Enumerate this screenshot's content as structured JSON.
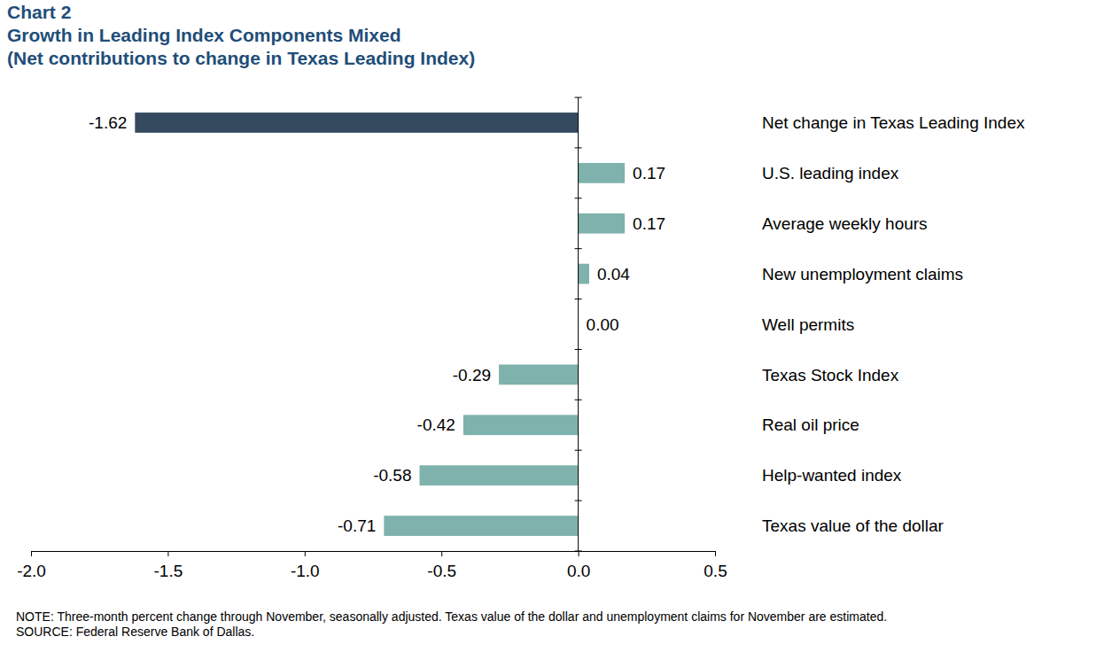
{
  "chart_data": {
    "type": "bar",
    "orientation": "horizontal",
    "title": "Chart 2",
    "subtitle": [
      "Growth in Leading Index Components Mixed",
      "(Net contributions to change in Texas Leading Index)"
    ],
    "categories": [
      "Net change in Texas Leading Index",
      "U.S. leading index",
      "Average weekly hours",
      "New unemployment claims",
      "Well permits",
      "Texas Stock Index",
      "Real oil price",
      "Help-wanted index",
      "Texas value of the dollar"
    ],
    "values": [
      -1.62,
      0.17,
      0.17,
      0.04,
      0.0,
      -0.29,
      -0.42,
      -0.58,
      -0.71
    ],
    "value_labels": [
      "-1.62",
      "0.17",
      "0.17",
      "0.04",
      "0.00",
      "-0.29",
      "-0.42",
      "-0.58",
      "-0.71"
    ],
    "data_labels": true,
    "colors": [
      "#354a5f",
      "#7fb2ac",
      "#7fb2ac",
      "#7fb2ac",
      "#7fb2ac",
      "#7fb2ac",
      "#7fb2ac",
      "#7fb2ac",
      "#7fb2ac"
    ],
    "xlim": [
      -2.0,
      0.5
    ],
    "xticks": [
      {
        "value": -2.0,
        "label": "-2.0"
      },
      {
        "value": -1.5,
        "label": "-1.5"
      },
      {
        "value": -1.0,
        "label": "-1.0"
      },
      {
        "value": -0.5,
        "label": "-0.5"
      },
      {
        "value": 0,
        "label": "0.0"
      },
      0.5
    ],
    "grid": false,
    "notes": [
      "NOTE: Three-month percent change through November, seasonally adjusted. Texas value of the dollar and unemployment claims for November are estimated.",
      "SOURCE: Federal Reserve Bank of Dallas."
    ]
  }
}
